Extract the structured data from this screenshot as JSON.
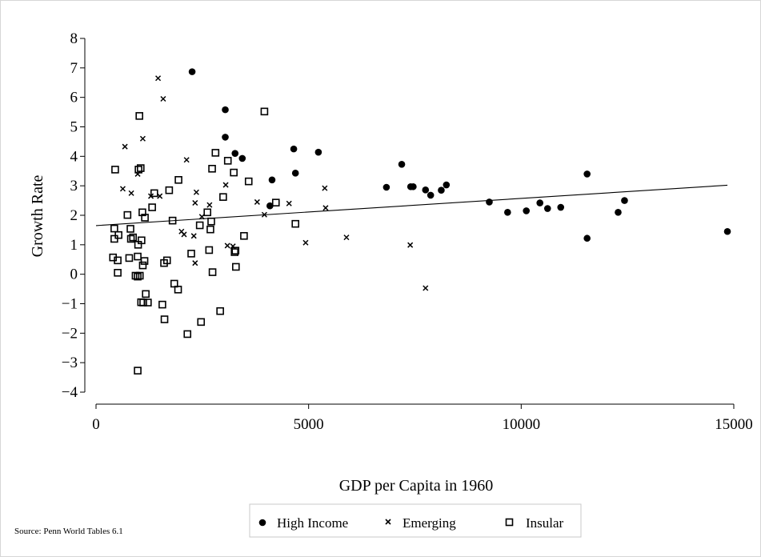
{
  "chart_data": {
    "type": "scatter",
    "title": "",
    "xlabel": "GDP per Capita in 1960",
    "ylabel": "Growth Rate",
    "xlim": [
      0,
      15000
    ],
    "ylim": [
      -4,
      8
    ],
    "xticks": [
      0,
      5000,
      10000,
      15000
    ],
    "yticks": [
      8,
      7,
      6,
      5,
      4,
      3,
      2,
      1,
      0,
      -1,
      -2,
      -3,
      -4
    ],
    "xtick_labels": [
      "0",
      "5000",
      "10000",
      "15000"
    ],
    "ytick_labels": [
      "8",
      "7",
      "6",
      "5",
      "4",
      "3",
      "2",
      "1",
      "0",
      "−1",
      "−2",
      "−3",
      "−4"
    ],
    "grid": false,
    "legend_position": "bottom",
    "source": "Source: Penn World Tables 6.1",
    "fit_line": {
      "x": [
        0,
        14850
      ],
      "y": [
        1.65,
        3.02
      ]
    },
    "series": [
      {
        "name": "High Income",
        "marker": "circle",
        "points": [
          [
            2260,
            6.87
          ],
          [
            3040,
            5.58
          ],
          [
            3040,
            4.65
          ],
          [
            3270,
            4.1
          ],
          [
            3440,
            3.93
          ],
          [
            4140,
            3.2
          ],
          [
            4090,
            2.32
          ],
          [
            4650,
            4.25
          ],
          [
            4690,
            3.43
          ],
          [
            5230,
            4.14
          ],
          [
            6830,
            2.95
          ],
          [
            7190,
            3.73
          ],
          [
            7400,
            2.97
          ],
          [
            7460,
            2.97
          ],
          [
            7750,
            2.86
          ],
          [
            7870,
            2.68
          ],
          [
            8120,
            2.85
          ],
          [
            8240,
            3.03
          ],
          [
            9250,
            2.45
          ],
          [
            9680,
            2.1
          ],
          [
            10120,
            2.15
          ],
          [
            10440,
            2.42
          ],
          [
            10620,
            2.23
          ],
          [
            10930,
            2.27
          ],
          [
            11550,
            3.4
          ],
          [
            11550,
            1.22
          ],
          [
            12280,
            2.1
          ],
          [
            12430,
            2.5
          ],
          [
            14850,
            1.45
          ]
        ]
      },
      {
        "name": "Emerging",
        "marker": "x",
        "points": [
          [
            1460,
            6.65
          ],
          [
            1580,
            5.95
          ],
          [
            1100,
            4.6
          ],
          [
            680,
            4.33
          ],
          [
            980,
            3.4
          ],
          [
            630,
            2.9
          ],
          [
            830,
            2.75
          ],
          [
            1290,
            2.65
          ],
          [
            1500,
            2.65
          ],
          [
            2130,
            3.88
          ],
          [
            2360,
            2.78
          ],
          [
            2010,
            1.45
          ],
          [
            2070,
            1.35
          ],
          [
            2300,
            1.3
          ],
          [
            2330,
            0.38
          ],
          [
            2490,
            1.95
          ],
          [
            2670,
            2.35
          ],
          [
            2330,
            2.42
          ],
          [
            3050,
            3.03
          ],
          [
            3090,
            0.97
          ],
          [
            3220,
            0.95
          ],
          [
            3790,
            2.45
          ],
          [
            3960,
            2.02
          ],
          [
            4540,
            2.4
          ],
          [
            4930,
            1.07
          ],
          [
            5380,
            2.92
          ],
          [
            5400,
            2.25
          ],
          [
            5890,
            1.25
          ],
          [
            7390,
            0.99
          ],
          [
            7750,
            -0.47
          ]
        ]
      },
      {
        "name": "Insular",
        "marker": "square",
        "points": [
          [
            450,
            3.55
          ],
          [
            1020,
            5.37
          ],
          [
            3960,
            5.52
          ],
          [
            2810,
            4.12
          ],
          [
            3100,
            3.85
          ],
          [
            1050,
            3.6
          ],
          [
            1000,
            3.55
          ],
          [
            2730,
            3.58
          ],
          [
            3240,
            3.45
          ],
          [
            1940,
            3.2
          ],
          [
            3590,
            3.15
          ],
          [
            1370,
            2.75
          ],
          [
            1320,
            2.27
          ],
          [
            2990,
            2.62
          ],
          [
            2620,
            2.1
          ],
          [
            4230,
            2.43
          ],
          [
            740,
            2.01
          ],
          [
            1090,
            2.1
          ],
          [
            1150,
            1.92
          ],
          [
            1720,
            2.85
          ],
          [
            1800,
            1.82
          ],
          [
            2440,
            1.66
          ],
          [
            2690,
            1.52
          ],
          [
            2710,
            1.79
          ],
          [
            4690,
            1.71
          ],
          [
            430,
            1.55
          ],
          [
            430,
            1.2
          ],
          [
            810,
            1.54
          ],
          [
            820,
            1.2
          ],
          [
            870,
            1.25
          ],
          [
            990,
            1.0
          ],
          [
            1070,
            1.15
          ],
          [
            530,
            1.33
          ],
          [
            3480,
            1.3
          ],
          [
            400,
            0.57
          ],
          [
            510,
            0.47
          ],
          [
            780,
            0.55
          ],
          [
            980,
            0.6
          ],
          [
            1140,
            0.45
          ],
          [
            1670,
            0.47
          ],
          [
            1600,
            0.38
          ],
          [
            2240,
            0.7
          ],
          [
            2660,
            0.82
          ],
          [
            3260,
            0.75
          ],
          [
            3280,
            0.8
          ],
          [
            510,
            0.05
          ],
          [
            930,
            -0.05
          ],
          [
            980,
            -0.08
          ],
          [
            1030,
            -0.05
          ],
          [
            1100,
            0.3
          ],
          [
            2740,
            0.07
          ],
          [
            3290,
            0.25
          ],
          [
            1840,
            -0.32
          ],
          [
            1930,
            -0.52
          ],
          [
            1170,
            -0.67
          ],
          [
            1060,
            -0.95
          ],
          [
            1110,
            -0.96
          ],
          [
            1220,
            -0.96
          ],
          [
            1560,
            -1.03
          ],
          [
            2920,
            -1.25
          ],
          [
            1610,
            -1.53
          ],
          [
            2470,
            -1.62
          ],
          [
            2150,
            -2.03
          ],
          [
            980,
            -3.27
          ]
        ]
      }
    ]
  }
}
